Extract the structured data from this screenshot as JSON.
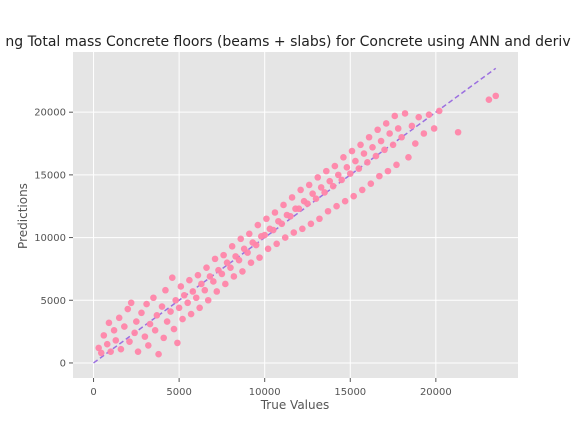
{
  "chart_data": {
    "type": "scatter",
    "title": "ng Total mass Concrete floors (beams + slabs) for Concrete using ANN and deriv",
    "xlabel": "True Values",
    "ylabel": "Predictions",
    "xlim": [
      -1200,
      24800
    ],
    "ylim": [
      -1200,
      24800
    ],
    "x_ticks": [
      0,
      5000,
      10000,
      15000,
      20000
    ],
    "y_ticks": [
      0,
      5000,
      10000,
      15000,
      20000
    ],
    "x_tick_labels": [
      "0",
      "5000",
      "10000",
      "15000",
      "20000"
    ],
    "y_tick_labels": [
      "0",
      "5000",
      "10000",
      "15000",
      "20000"
    ],
    "grid": true,
    "colors": {
      "points": "#ff85a9",
      "reference_line": "#9b6fe0",
      "plot_background": "#e5e5e5",
      "grid": "#ffffff",
      "text": "#555555",
      "title": "#222222"
    },
    "reference_line": {
      "style": "dashed",
      "from": [
        0,
        0
      ],
      "to": [
        23500,
        23500
      ]
    },
    "series": [
      {
        "marker": "circle",
        "points": [
          [
            300,
            1200
          ],
          [
            450,
            800
          ],
          [
            600,
            2200
          ],
          [
            800,
            1500
          ],
          [
            900,
            3200
          ],
          [
            1000,
            900
          ],
          [
            1200,
            2600
          ],
          [
            1300,
            1800
          ],
          [
            1500,
            3600
          ],
          [
            1600,
            1100
          ],
          [
            1800,
            2900
          ],
          [
            2000,
            4300
          ],
          [
            2100,
            1700
          ],
          [
            2200,
            4800
          ],
          [
            2400,
            2400
          ],
          [
            2500,
            3300
          ],
          [
            2600,
            900
          ],
          [
            2800,
            4000
          ],
          [
            3000,
            2100
          ],
          [
            3100,
            4700
          ],
          [
            3200,
            1400
          ],
          [
            3300,
            3100
          ],
          [
            3500,
            5200
          ],
          [
            3600,
            2600
          ],
          [
            3700,
            3800
          ],
          [
            3800,
            700
          ],
          [
            4000,
            4500
          ],
          [
            4100,
            2000
          ],
          [
            4200,
            5800
          ],
          [
            4300,
            3300
          ],
          [
            4500,
            4100
          ],
          [
            4600,
            6800
          ],
          [
            4700,
            2700
          ],
          [
            4800,
            5000
          ],
          [
            4900,
            1600
          ],
          [
            5000,
            4400
          ],
          [
            5100,
            6100
          ],
          [
            5200,
            3500
          ],
          [
            5300,
            5400
          ],
          [
            5500,
            4800
          ],
          [
            5600,
            6600
          ],
          [
            5700,
            3900
          ],
          [
            5800,
            5700
          ],
          [
            6000,
            5200
          ],
          [
            6100,
            7000
          ],
          [
            6200,
            4400
          ],
          [
            6300,
            6300
          ],
          [
            6500,
            5800
          ],
          [
            6600,
            7600
          ],
          [
            6700,
            5000
          ],
          [
            6800,
            6900
          ],
          [
            7000,
            6500
          ],
          [
            7100,
            8300
          ],
          [
            7200,
            5700
          ],
          [
            7300,
            7400
          ],
          [
            7500,
            7100
          ],
          [
            7600,
            8600
          ],
          [
            7700,
            6300
          ],
          [
            7800,
            8000
          ],
          [
            8000,
            7600
          ],
          [
            8100,
            9300
          ],
          [
            8200,
            6900
          ],
          [
            8300,
            8500
          ],
          [
            8500,
            8200
          ],
          [
            8600,
            9900
          ],
          [
            8700,
            7300
          ],
          [
            8800,
            9100
          ],
          [
            9000,
            8800
          ],
          [
            9100,
            10300
          ],
          [
            9200,
            8000
          ],
          [
            9300,
            9600
          ],
          [
            9500,
            9400
          ],
          [
            9600,
            11000
          ],
          [
            9700,
            8400
          ],
          [
            9800,
            10100
          ],
          [
            10000,
            10200
          ],
          [
            10100,
            11500
          ],
          [
            10200,
            9100
          ],
          [
            10300,
            10700
          ],
          [
            10500,
            10600
          ],
          [
            10600,
            12000
          ],
          [
            10700,
            9500
          ],
          [
            10800,
            11300
          ],
          [
            11000,
            11100
          ],
          [
            11100,
            12600
          ],
          [
            11200,
            10000
          ],
          [
            11300,
            11800
          ],
          [
            11500,
            11700
          ],
          [
            11600,
            13200
          ],
          [
            11700,
            10400
          ],
          [
            11800,
            12300
          ],
          [
            12000,
            12300
          ],
          [
            12100,
            13800
          ],
          [
            12200,
            10700
          ],
          [
            12300,
            12900
          ],
          [
            12500,
            12700
          ],
          [
            12600,
            14200
          ],
          [
            12700,
            11100
          ],
          [
            12800,
            13500
          ],
          [
            13000,
            13100
          ],
          [
            13100,
            14800
          ],
          [
            13200,
            11500
          ],
          [
            13300,
            14000
          ],
          [
            13500,
            13600
          ],
          [
            13600,
            15300
          ],
          [
            13700,
            12100
          ],
          [
            13800,
            14500
          ],
          [
            14000,
            14100
          ],
          [
            14100,
            15700
          ],
          [
            14200,
            12500
          ],
          [
            14300,
            15000
          ],
          [
            14500,
            14600
          ],
          [
            14600,
            16400
          ],
          [
            14700,
            12900
          ],
          [
            14800,
            15600
          ],
          [
            15000,
            15100
          ],
          [
            15100,
            16900
          ],
          [
            15200,
            13300
          ],
          [
            15300,
            16100
          ],
          [
            15500,
            15500
          ],
          [
            15600,
            17400
          ],
          [
            15700,
            13800
          ],
          [
            15800,
            16700
          ],
          [
            16000,
            16000
          ],
          [
            16100,
            18000
          ],
          [
            16200,
            14300
          ],
          [
            16300,
            17200
          ],
          [
            16500,
            16500
          ],
          [
            16600,
            18600
          ],
          [
            16700,
            14900
          ],
          [
            16800,
            17700
          ],
          [
            17000,
            17000
          ],
          [
            17100,
            19100
          ],
          [
            17200,
            15300
          ],
          [
            17300,
            18300
          ],
          [
            17500,
            17400
          ],
          [
            17600,
            19700
          ],
          [
            17700,
            15800
          ],
          [
            17800,
            18700
          ],
          [
            18000,
            18000
          ],
          [
            18200,
            19900
          ],
          [
            18400,
            16400
          ],
          [
            18600,
            18900
          ],
          [
            18800,
            17500
          ],
          [
            19000,
            19600
          ],
          [
            19300,
            18300
          ],
          [
            19600,
            19800
          ],
          [
            19900,
            18700
          ],
          [
            20200,
            20100
          ],
          [
            21300,
            18400
          ],
          [
            23100,
            21000
          ],
          [
            23500,
            21300
          ]
        ]
      }
    ]
  }
}
